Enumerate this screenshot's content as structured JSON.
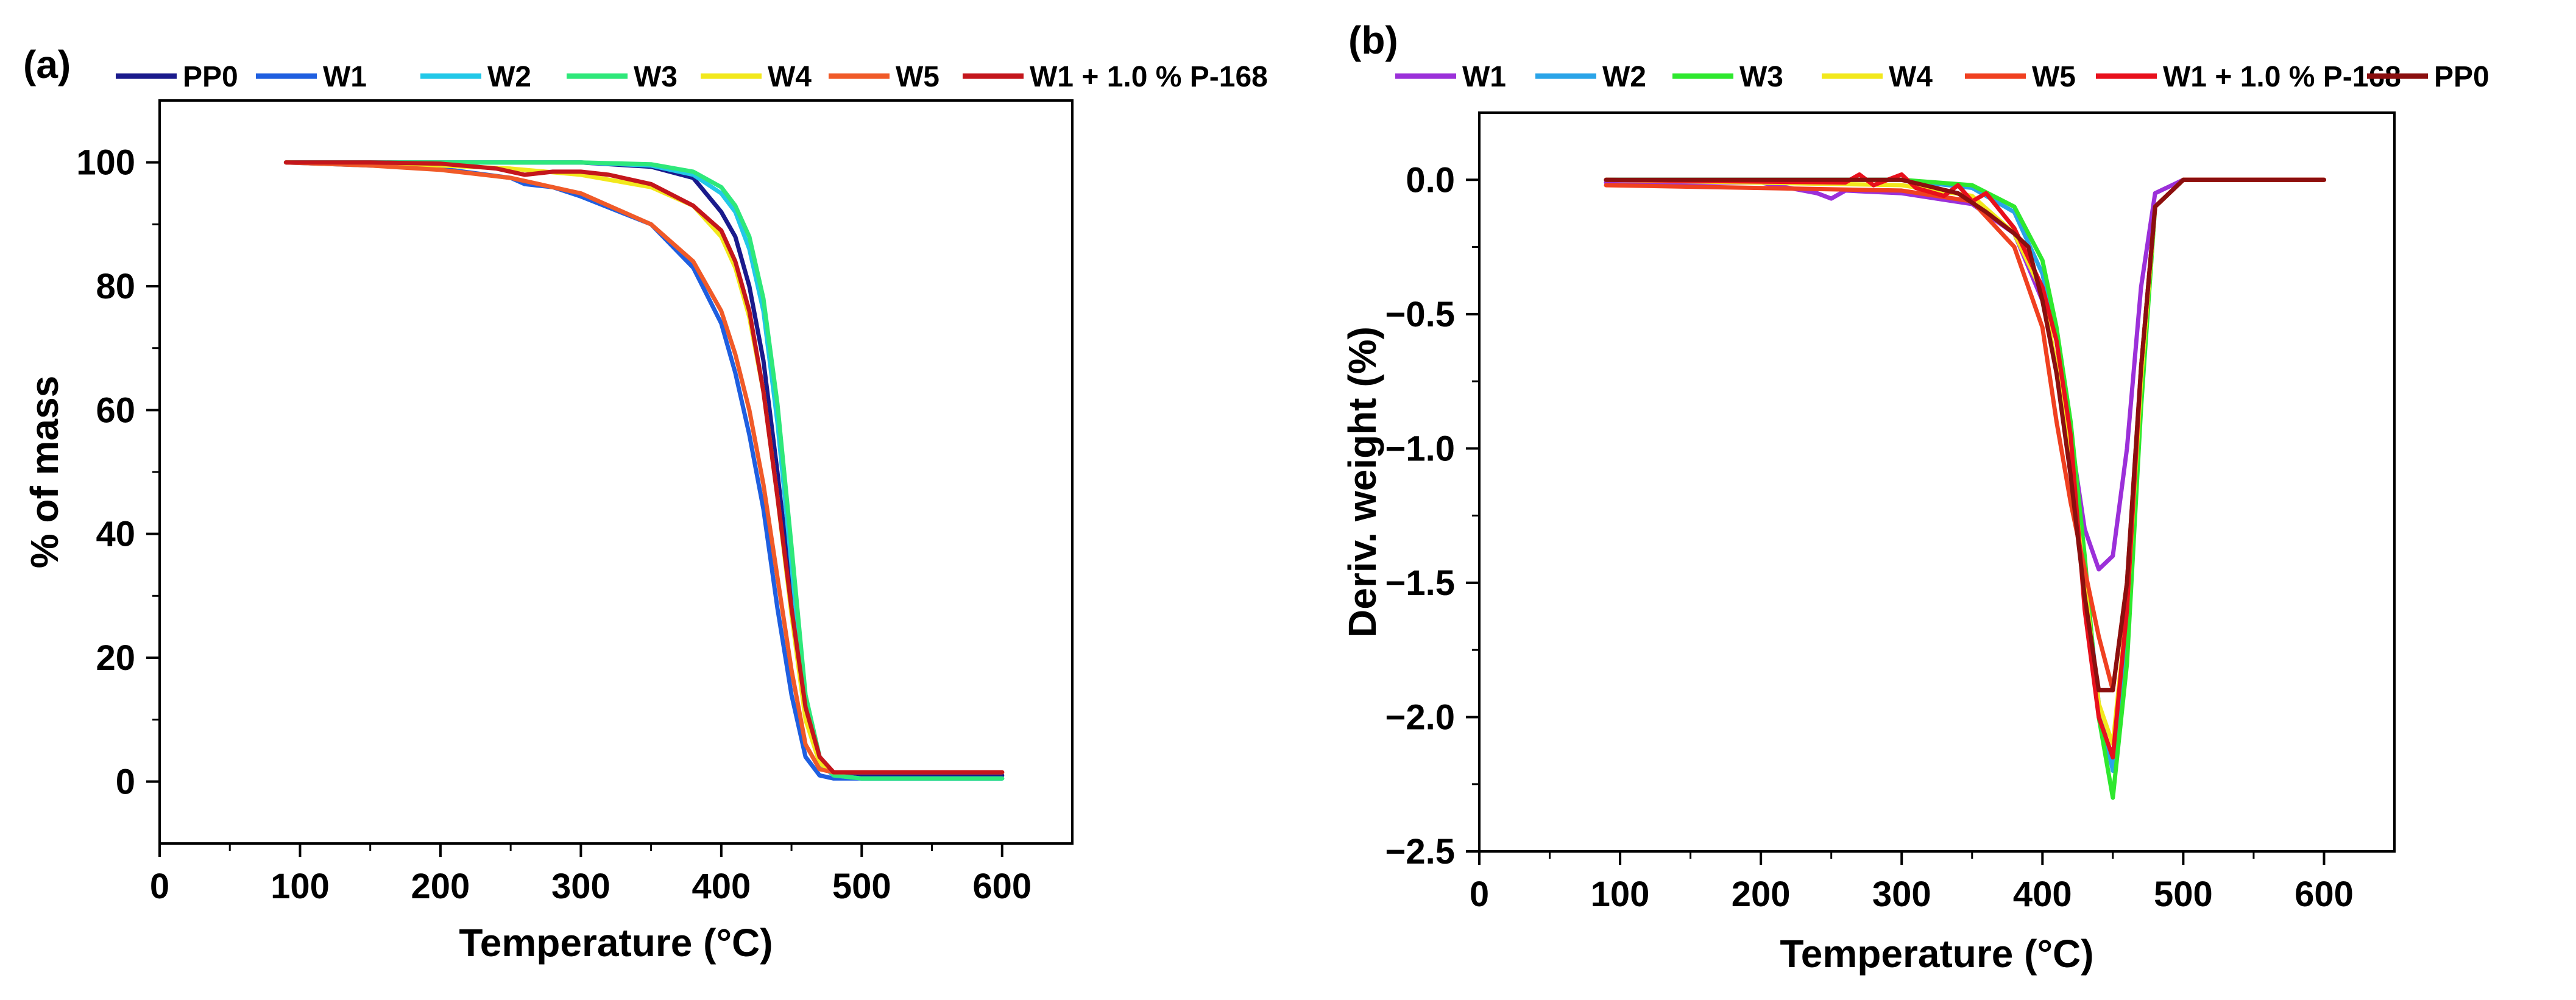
{
  "chart_data": [
    {
      "type": "line",
      "panel_label": "(a)",
      "xlabel": "Temperature (°C)",
      "ylabel": "% of mass",
      "xlim": [
        0,
        650
      ],
      "ylim": [
        -10,
        110
      ],
      "xticks": [
        0,
        100,
        200,
        300,
        400,
        500,
        600
      ],
      "xtick_labels": [
        "0",
        "100",
        "200",
        "300",
        "400",
        "500",
        "600"
      ],
      "yticks": [
        0,
        20,
        40,
        60,
        80,
        100
      ],
      "ytick_labels": [
        "0",
        "20",
        "40",
        "60",
        "80",
        "100"
      ],
      "legend_position": "top",
      "series": [
        {
          "name": "PP0",
          "color": "#1a1a8c",
          "x": [
            90,
            150,
            200,
            250,
            300,
            350,
            380,
            400,
            410,
            420,
            430,
            440,
            450,
            460,
            470,
            480,
            500,
            600
          ],
          "y": [
            100,
            100,
            100,
            100,
            100,
            99.3,
            97.5,
            92,
            88,
            80,
            68,
            50,
            30,
            12,
            3,
            1,
            1,
            1
          ]
        },
        {
          "name": "W1",
          "color": "#1f5fe0",
          "x": [
            90,
            150,
            200,
            250,
            260,
            280,
            300,
            350,
            380,
            400,
            410,
            420,
            430,
            440,
            450,
            460,
            470,
            480,
            500,
            600
          ],
          "y": [
            100,
            99.5,
            99,
            97.5,
            96.5,
            96,
            94.5,
            90,
            83,
            74,
            66,
            56,
            44,
            28,
            14,
            4,
            1,
            0.5,
            0.5,
            0.5
          ]
        },
        {
          "name": "W2",
          "color": "#22c8e8",
          "x": [
            90,
            150,
            200,
            250,
            300,
            350,
            380,
            400,
            410,
            420,
            430,
            440,
            450,
            460,
            470,
            480,
            500,
            600
          ],
          "y": [
            100,
            100,
            100,
            100,
            100,
            99.5,
            98,
            95,
            92,
            86,
            76,
            58,
            35,
            12,
            3,
            1,
            0.5,
            0.5
          ]
        },
        {
          "name": "W3",
          "color": "#2ee87a",
          "x": [
            90,
            150,
            200,
            250,
            300,
            350,
            380,
            400,
            410,
            420,
            430,
            440,
            450,
            460,
            470,
            480,
            500,
            600
          ],
          "y": [
            100,
            100,
            100,
            100,
            100,
            99.7,
            98.5,
            96,
            93,
            88,
            78,
            61,
            38,
            14,
            4,
            1,
            0.5,
            0.5
          ]
        },
        {
          "name": "W4",
          "color": "#f2e81c",
          "x": [
            90,
            150,
            200,
            250,
            300,
            350,
            380,
            400,
            410,
            420,
            430,
            440,
            450,
            460,
            470,
            480,
            500,
            600
          ],
          "y": [
            100,
            99.8,
            99.5,
            99,
            98,
            96,
            93,
            88,
            83,
            75,
            63,
            46,
            27,
            10,
            3,
            1.5,
            1.5,
            1.5
          ]
        },
        {
          "name": "W5",
          "color": "#f05a28",
          "x": [
            90,
            150,
            200,
            250,
            300,
            350,
            380,
            400,
            410,
            420,
            430,
            440,
            450,
            460,
            470,
            480,
            500,
            600
          ],
          "y": [
            100,
            99.5,
            98.8,
            97.5,
            95,
            90,
            84,
            76,
            69,
            60,
            48,
            33,
            18,
            6,
            2,
            1.5,
            1.5,
            1.5
          ]
        },
        {
          "name": "W1 + 1.0 %  P-168",
          "color": "#c4161c",
          "x": [
            90,
            150,
            200,
            240,
            260,
            280,
            300,
            320,
            350,
            380,
            400,
            410,
            420,
            430,
            440,
            450,
            460,
            470,
            480,
            500,
            600
          ],
          "y": [
            100,
            100,
            99.8,
            99,
            98,
            98.5,
            98.5,
            98,
            96.5,
            93,
            89,
            84,
            76,
            63,
            46,
            28,
            12,
            4,
            1.5,
            1.5,
            1.5
          ]
        }
      ]
    },
    {
      "type": "line",
      "panel_label": "(b)",
      "xlabel": "Temperature (°C)",
      "ylabel": "Deriv. weight (%)",
      "xlim": [
        0,
        650
      ],
      "ylim": [
        -2.5,
        0.25
      ],
      "xticks": [
        0,
        100,
        200,
        300,
        400,
        500,
        600
      ],
      "xtick_labels": [
        "0",
        "100",
        "200",
        "300",
        "400",
        "500",
        "600"
      ],
      "yticks": [
        0.0,
        -0.5,
        -1.0,
        -1.5,
        -2.0,
        -2.5
      ],
      "ytick_labels": [
        "0.0",
        "−0.5",
        "−1.0",
        "−1.5",
        "−2.0",
        "−2.5"
      ],
      "legend_position": "top",
      "series": [
        {
          "name": "W1",
          "color": "#9b30d9",
          "x": [
            90,
            200,
            240,
            250,
            260,
            300,
            350,
            380,
            400,
            420,
            430,
            440,
            450,
            460,
            470,
            480,
            500,
            600
          ],
          "y": [
            -0.01,
            -0.01,
            -0.05,
            -0.07,
            -0.04,
            -0.05,
            -0.09,
            -0.2,
            -0.45,
            -0.95,
            -1.3,
            -1.45,
            -1.4,
            -1.0,
            -0.4,
            -0.05,
            0,
            0
          ]
        },
        {
          "name": "W2",
          "color": "#2aa4e8",
          "x": [
            90,
            300,
            350,
            380,
            400,
            410,
            420,
            430,
            440,
            450,
            460,
            470,
            480,
            500,
            600
          ],
          "y": [
            0,
            0,
            -0.03,
            -0.12,
            -0.35,
            -0.6,
            -0.95,
            -1.45,
            -1.95,
            -2.2,
            -1.7,
            -0.8,
            -0.1,
            0,
            0
          ]
        },
        {
          "name": "W3",
          "color": "#2ee82e",
          "x": [
            90,
            300,
            350,
            380,
            400,
            410,
            420,
            430,
            440,
            450,
            460,
            470,
            480,
            500,
            600
          ],
          "y": [
            0,
            0,
            -0.02,
            -0.1,
            -0.3,
            -0.55,
            -0.9,
            -1.4,
            -2.0,
            -2.3,
            -1.8,
            -0.85,
            -0.1,
            0,
            0
          ]
        },
        {
          "name": "W4",
          "color": "#f2e81c",
          "x": [
            90,
            300,
            350,
            380,
            400,
            410,
            420,
            430,
            440,
            450,
            460,
            470,
            480,
            500,
            600
          ],
          "y": [
            0,
            -0.02,
            -0.06,
            -0.2,
            -0.42,
            -0.7,
            -1.05,
            -1.5,
            -1.95,
            -2.1,
            -1.6,
            -0.75,
            -0.1,
            0,
            0
          ]
        },
        {
          "name": "W5",
          "color": "#f04020",
          "x": [
            90,
            300,
            350,
            380,
            400,
            410,
            420,
            430,
            440,
            450,
            460,
            470,
            480,
            500,
            600
          ],
          "y": [
            -0.02,
            -0.04,
            -0.08,
            -0.25,
            -0.55,
            -0.9,
            -1.2,
            -1.45,
            -1.7,
            -1.9,
            -1.5,
            -0.7,
            -0.1,
            0,
            0
          ]
        },
        {
          "name": "W1 + 1.0 % P-168",
          "color": "#e8101c",
          "x": [
            90,
            260,
            270,
            280,
            290,
            300,
            310,
            330,
            340,
            350,
            360,
            380,
            400,
            410,
            420,
            430,
            440,
            450,
            460,
            470,
            480,
            500,
            600
          ],
          "y": [
            0,
            -0.01,
            0.02,
            -0.02,
            0,
            0.02,
            -0.03,
            -0.06,
            -0.02,
            -0.08,
            -0.05,
            -0.18,
            -0.4,
            -0.6,
            -0.95,
            -1.6,
            -2.0,
            -2.15,
            -1.6,
            -0.7,
            -0.1,
            0,
            0
          ]
        },
        {
          "name": "PP0",
          "color": "#8b0f0f",
          "x": [
            90,
            300,
            340,
            360,
            380,
            390,
            400,
            410,
            420,
            430,
            440,
            450,
            460,
            470,
            480,
            500,
            600
          ],
          "y": [
            0,
            0,
            -0.05,
            -0.12,
            -0.2,
            -0.25,
            -0.45,
            -0.72,
            -1.1,
            -1.55,
            -1.9,
            -1.9,
            -1.5,
            -0.7,
            -0.1,
            0,
            0
          ]
        }
      ]
    }
  ]
}
